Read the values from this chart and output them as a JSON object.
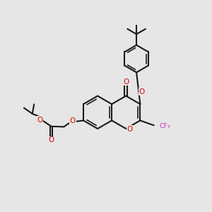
{
  "bg_color": "#e6e6e6",
  "bc": "#1a1a1a",
  "oc": "#dd0000",
  "fc": "#cc33bb",
  "lw": 1.5,
  "lw2": 1.2,
  "figsize": [
    3.0,
    3.0
  ],
  "dpi": 100,
  "xlim": [
    0,
    10
  ],
  "ylim": [
    0,
    10
  ],
  "r_core": 0.78,
  "r_ph": 0.65,
  "Acx": 4.6,
  "Acy": 4.7
}
